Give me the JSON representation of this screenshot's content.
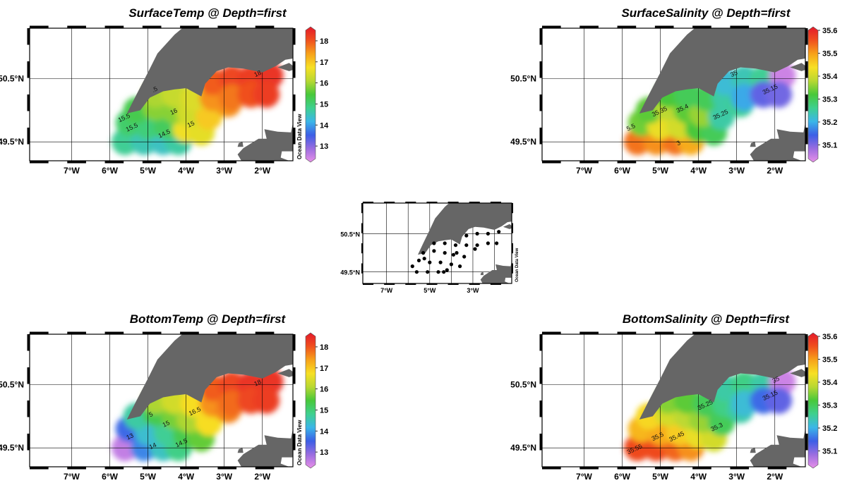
{
  "watermark": "Ocean Data View",
  "colors": {
    "land": "#666666",
    "grid": "#000000",
    "frame": "#000000",
    "colormap": [
      "#e890e8",
      "#9b6de0",
      "#3c5ee6",
      "#3bb6e8",
      "#3fd08f",
      "#48c83a",
      "#b8d832",
      "#f7e024",
      "#f7a21a",
      "#f0501e",
      "#e4192b"
    ]
  },
  "axes": {
    "x_ticks": [
      "7°W",
      "6°W",
      "5°W",
      "4°W",
      "3°W",
      "2°W"
    ],
    "x_values": [
      -7,
      -6,
      -5,
      -4,
      -3,
      -2
    ],
    "y_ticks": [
      "50.5°N",
      "49.5°N"
    ],
    "y_values": [
      50.5,
      49.5
    ],
    "lon_range": [
      -8.1,
      -1.2
    ],
    "lat_range": [
      49.2,
      51.3
    ],
    "inset_x_ticks": [
      "7°W",
      "5°W",
      "3°W"
    ],
    "inset_x_values": [
      -7,
      -5,
      -3
    ],
    "inset_y_ticks": [
      "50.5°N",
      "49.5°N"
    ],
    "inset_y_values": [
      50.5,
      49.5
    ]
  },
  "chart_data": [
    {
      "type": "heatmap",
      "title": "SurfaceTemp @ Depth=first",
      "variable": "SurfaceTemp",
      "colorbar": {
        "min": 12.4,
        "max": 18.5,
        "ticks": [
          "18",
          "17",
          "16",
          "15",
          "14",
          "13"
        ],
        "tick_values": [
          18,
          17,
          16,
          15,
          14,
          13
        ]
      },
      "contour_labels": [
        {
          "text": "18",
          "lon": -2.1,
          "lat": 50.55
        },
        {
          "text": "16",
          "lon": -4.3,
          "lat": 49.95
        },
        {
          "text": "15.5",
          "lon": -5.6,
          "lat": 49.85
        },
        {
          "text": "15.5",
          "lon": -5.4,
          "lat": 49.7
        },
        {
          "text": "14.5",
          "lon": -4.55,
          "lat": 49.6
        },
        {
          "text": ".5",
          "lon": -4.8,
          "lat": 50.3
        },
        {
          "text": "15",
          "lon": -3.85,
          "lat": 49.75
        }
      ],
      "stations": [
        {
          "lon": -5.6,
          "lat": 49.5,
          "value": 14.8
        },
        {
          "lon": -5.1,
          "lat": 49.5,
          "value": 14.6
        },
        {
          "lon": -4.6,
          "lat": 49.5,
          "value": 14.5
        },
        {
          "lon": -4.2,
          "lat": 49.5,
          "value": 14.7
        },
        {
          "lon": -5.5,
          "lat": 49.8,
          "value": 15.1
        },
        {
          "lon": -5.0,
          "lat": 49.75,
          "value": 15.0
        },
        {
          "lon": -4.5,
          "lat": 49.75,
          "value": 15.2
        },
        {
          "lon": -4.0,
          "lat": 49.7,
          "value": 16.6
        },
        {
          "lon": -3.6,
          "lat": 49.65,
          "value": 16.5
        },
        {
          "lon": -5.3,
          "lat": 50.0,
          "value": 15.3
        },
        {
          "lon": -4.8,
          "lat": 50.05,
          "value": 15.8
        },
        {
          "lon": -4.3,
          "lat": 50.0,
          "value": 15.8
        },
        {
          "lon": -3.9,
          "lat": 49.95,
          "value": 16.3
        },
        {
          "lon": -3.4,
          "lat": 49.9,
          "value": 16.9
        },
        {
          "lon": -4.8,
          "lat": 50.25,
          "value": 16.0
        },
        {
          "lon": -4.3,
          "lat": 50.25,
          "value": 16.2
        },
        {
          "lon": -3.8,
          "lat": 50.2,
          "value": 16.4
        },
        {
          "lon": -3.3,
          "lat": 50.2,
          "value": 17.4
        },
        {
          "lon": -2.9,
          "lat": 50.1,
          "value": 17.4
        },
        {
          "lon": -3.3,
          "lat": 50.45,
          "value": 17.8
        },
        {
          "lon": -2.8,
          "lat": 50.5,
          "value": 18.0
        },
        {
          "lon": -2.3,
          "lat": 50.5,
          "value": 18.1
        },
        {
          "lon": -1.8,
          "lat": 50.55,
          "value": 18.2
        },
        {
          "lon": -2.8,
          "lat": 50.2,
          "value": 17.6
        },
        {
          "lon": -2.3,
          "lat": 50.25,
          "value": 17.9
        },
        {
          "lon": -1.9,
          "lat": 50.25,
          "value": 18.1
        }
      ]
    },
    {
      "type": "heatmap",
      "title": "SurfaceSalinity @ Depth=first",
      "variable": "SurfaceSalinity",
      "colorbar": {
        "min": 35.04,
        "max": 35.6,
        "ticks": [
          "35.6",
          "35.5",
          "35.4",
          "35.3",
          "35.2",
          "35.1"
        ],
        "tick_values": [
          35.6,
          35.5,
          35.4,
          35.3,
          35.2,
          35.1
        ]
      },
      "contour_labels": [
        {
          "text": "35.35",
          "lon": -5.0,
          "lat": 49.95
        },
        {
          "text": "35.4",
          "lon": -4.4,
          "lat": 50.0
        },
        {
          "text": "35.25",
          "lon": -3.4,
          "lat": 49.9
        },
        {
          "text": "35.15",
          "lon": -2.1,
          "lat": 50.3
        },
        {
          "text": "5.5",
          "lon": -5.75,
          "lat": 49.7
        },
        {
          "text": "3",
          "lon": -4.5,
          "lat": 49.45
        },
        {
          "text": "35",
          "lon": -3.05,
          "lat": 50.55
        }
      ],
      "stations": [
        {
          "lon": -5.6,
          "lat": 49.5,
          "value": 35.52
        },
        {
          "lon": -5.1,
          "lat": 49.5,
          "value": 35.5
        },
        {
          "lon": -4.6,
          "lat": 49.5,
          "value": 35.52
        },
        {
          "lon": -4.2,
          "lat": 49.5,
          "value": 35.48
        },
        {
          "lon": -5.5,
          "lat": 49.8,
          "value": 35.34
        },
        {
          "lon": -5.0,
          "lat": 49.75,
          "value": 35.42
        },
        {
          "lon": -4.5,
          "lat": 49.75,
          "value": 35.4
        },
        {
          "lon": -4.0,
          "lat": 49.7,
          "value": 35.32
        },
        {
          "lon": -3.6,
          "lat": 49.65,
          "value": 35.3
        },
        {
          "lon": -5.3,
          "lat": 50.0,
          "value": 35.33
        },
        {
          "lon": -4.8,
          "lat": 50.05,
          "value": 35.38
        },
        {
          "lon": -4.3,
          "lat": 50.0,
          "value": 35.33
        },
        {
          "lon": -3.9,
          "lat": 49.95,
          "value": 35.36
        },
        {
          "lon": -3.4,
          "lat": 49.9,
          "value": 35.25
        },
        {
          "lon": -4.8,
          "lat": 50.25,
          "value": 35.32
        },
        {
          "lon": -4.3,
          "lat": 50.25,
          "value": 35.3
        },
        {
          "lon": -3.8,
          "lat": 50.2,
          "value": 35.3
        },
        {
          "lon": -3.3,
          "lat": 50.2,
          "value": 35.25
        },
        {
          "lon": -2.9,
          "lat": 50.1,
          "value": 35.26
        },
        {
          "lon": -3.3,
          "lat": 50.45,
          "value": 35.22
        },
        {
          "lon": -2.8,
          "lat": 50.5,
          "value": 35.24
        },
        {
          "lon": -2.3,
          "lat": 50.5,
          "value": 35.26
        },
        {
          "lon": -1.8,
          "lat": 50.55,
          "value": 35.06
        },
        {
          "lon": -2.8,
          "lat": 50.2,
          "value": 35.2
        },
        {
          "lon": -2.3,
          "lat": 50.25,
          "value": 35.13
        },
        {
          "lon": -1.9,
          "lat": 50.25,
          "value": 35.12
        }
      ]
    },
    {
      "type": "heatmap",
      "title": "BottomTemp @ Depth=first",
      "variable": "BottomTemp",
      "colorbar": {
        "min": 12.4,
        "max": 18.5,
        "ticks": [
          "18",
          "17",
          "16",
          "15",
          "14",
          "13"
        ],
        "tick_values": [
          18,
          17,
          16,
          15,
          14,
          13
        ]
      },
      "contour_labels": [
        {
          "text": "18",
          "lon": -2.1,
          "lat": 50.5
        },
        {
          "text": "16.5",
          "lon": -3.75,
          "lat": 50.05
        },
        {
          "text": "15",
          "lon": -4.5,
          "lat": 49.85
        },
        {
          "text": "14.5",
          "lon": -4.1,
          "lat": 49.55
        },
        {
          "text": "14",
          "lon": -4.85,
          "lat": 49.5
        },
        {
          "text": "13",
          "lon": -5.45,
          "lat": 49.65
        },
        {
          "text": "5",
          "lon": -4.9,
          "lat": 50.0
        }
      ],
      "stations": [
        {
          "lon": -5.6,
          "lat": 49.5,
          "value": 12.7
        },
        {
          "lon": -5.1,
          "lat": 49.5,
          "value": 13.9
        },
        {
          "lon": -4.6,
          "lat": 49.5,
          "value": 14.5
        },
        {
          "lon": -4.2,
          "lat": 49.5,
          "value": 14.9
        },
        {
          "lon": -5.5,
          "lat": 49.8,
          "value": 13.7
        },
        {
          "lon": -5.0,
          "lat": 49.75,
          "value": 14.4
        },
        {
          "lon": -4.5,
          "lat": 49.75,
          "value": 14.8
        },
        {
          "lon": -4.0,
          "lat": 49.7,
          "value": 15.3
        },
        {
          "lon": -3.6,
          "lat": 49.65,
          "value": 15.6
        },
        {
          "lon": -5.3,
          "lat": 50.0,
          "value": 14.7
        },
        {
          "lon": -4.8,
          "lat": 50.05,
          "value": 15.3
        },
        {
          "lon": -4.3,
          "lat": 50.0,
          "value": 15.7
        },
        {
          "lon": -3.9,
          "lat": 49.95,
          "value": 16.0
        },
        {
          "lon": -3.4,
          "lat": 49.9,
          "value": 16.7
        },
        {
          "lon": -4.8,
          "lat": 50.25,
          "value": 16.0
        },
        {
          "lon": -4.3,
          "lat": 50.25,
          "value": 16.3
        },
        {
          "lon": -3.8,
          "lat": 50.2,
          "value": 16.7
        },
        {
          "lon": -3.3,
          "lat": 50.2,
          "value": 17.4
        },
        {
          "lon": -2.9,
          "lat": 50.1,
          "value": 17.5
        },
        {
          "lon": -3.3,
          "lat": 50.45,
          "value": 17.8
        },
        {
          "lon": -2.8,
          "lat": 50.5,
          "value": 18.0
        },
        {
          "lon": -2.3,
          "lat": 50.5,
          "value": 18.2
        },
        {
          "lon": -1.8,
          "lat": 50.55,
          "value": 18.2
        },
        {
          "lon": -2.8,
          "lat": 50.2,
          "value": 17.7
        },
        {
          "lon": -2.3,
          "lat": 50.25,
          "value": 18.0
        },
        {
          "lon": -1.9,
          "lat": 50.25,
          "value": 18.1
        }
      ]
    },
    {
      "type": "heatmap",
      "title": "BottomSalinity @ Depth=first",
      "variable": "BottomSalinity",
      "colorbar": {
        "min": 35.04,
        "max": 35.6,
        "ticks": [
          "35.6",
          "35.5",
          "35.4",
          "35.3",
          "35.2",
          "35.1"
        ],
        "tick_values": [
          35.6,
          35.5,
          35.4,
          35.3,
          35.2,
          35.1
        ]
      },
      "contour_labels": [
        {
          "text": "35.55",
          "lon": -5.65,
          "lat": 49.45
        },
        {
          "text": "35.5",
          "lon": -5.05,
          "lat": 49.65
        },
        {
          "text": "35.45",
          "lon": -4.55,
          "lat": 49.65
        },
        {
          "text": "35.25",
          "lon": -3.8,
          "lat": 50.15
        },
        {
          "text": "35.3",
          "lon": -3.5,
          "lat": 49.8
        },
        {
          "text": "35.15",
          "lon": -2.1,
          "lat": 50.3
        },
        {
          "text": "35",
          "lon": -1.95,
          "lat": 50.55
        }
      ],
      "stations": [
        {
          "lon": -5.6,
          "lat": 49.5,
          "value": 35.55
        },
        {
          "lon": -5.1,
          "lat": 49.5,
          "value": 35.55
        },
        {
          "lon": -4.6,
          "lat": 49.5,
          "value": 35.53
        },
        {
          "lon": -4.2,
          "lat": 49.5,
          "value": 35.5
        },
        {
          "lon": -5.5,
          "lat": 49.8,
          "value": 35.47
        },
        {
          "lon": -5.0,
          "lat": 49.75,
          "value": 35.48
        },
        {
          "lon": -4.5,
          "lat": 49.75,
          "value": 35.45
        },
        {
          "lon": -4.0,
          "lat": 49.7,
          "value": 35.42
        },
        {
          "lon": -3.6,
          "lat": 49.65,
          "value": 35.4
        },
        {
          "lon": -5.3,
          "lat": 50.0,
          "value": 35.44
        },
        {
          "lon": -4.8,
          "lat": 50.05,
          "value": 35.4
        },
        {
          "lon": -4.3,
          "lat": 50.0,
          "value": 35.38
        },
        {
          "lon": -3.9,
          "lat": 49.95,
          "value": 35.36
        },
        {
          "lon": -3.4,
          "lat": 49.9,
          "value": 35.3
        },
        {
          "lon": -4.8,
          "lat": 50.25,
          "value": 35.35
        },
        {
          "lon": -4.3,
          "lat": 50.25,
          "value": 35.33
        },
        {
          "lon": -3.8,
          "lat": 50.2,
          "value": 35.3
        },
        {
          "lon": -3.3,
          "lat": 50.2,
          "value": 35.27
        },
        {
          "lon": -2.9,
          "lat": 50.1,
          "value": 35.25
        },
        {
          "lon": -3.3,
          "lat": 50.45,
          "value": 35.25
        },
        {
          "lon": -2.8,
          "lat": 50.5,
          "value": 35.27
        },
        {
          "lon": -2.3,
          "lat": 50.5,
          "value": 35.25
        },
        {
          "lon": -1.8,
          "lat": 50.55,
          "value": 35.06
        },
        {
          "lon": -2.8,
          "lat": 50.2,
          "value": 35.22
        },
        {
          "lon": -2.3,
          "lat": 50.25,
          "value": 35.16
        },
        {
          "lon": -1.9,
          "lat": 50.25,
          "value": 35.13
        }
      ]
    },
    {
      "type": "scatter",
      "title": "",
      "variable": "stations",
      "points": [
        {
          "lon": -5.6,
          "lat": 49.5
        },
        {
          "lon": -5.1,
          "lat": 49.5
        },
        {
          "lon": -4.6,
          "lat": 49.5
        },
        {
          "lon": -4.2,
          "lat": 49.55
        },
        {
          "lon": -5.5,
          "lat": 49.8
        },
        {
          "lon": -5.0,
          "lat": 49.75
        },
        {
          "lon": -4.5,
          "lat": 49.75
        },
        {
          "lon": -4.0,
          "lat": 49.7
        },
        {
          "lon": -3.6,
          "lat": 49.65
        },
        {
          "lon": -5.3,
          "lat": 50.0
        },
        {
          "lon": -4.8,
          "lat": 50.05
        },
        {
          "lon": -4.3,
          "lat": 50.0
        },
        {
          "lon": -3.9,
          "lat": 49.95
        },
        {
          "lon": -3.4,
          "lat": 49.9
        },
        {
          "lon": -4.8,
          "lat": 50.25
        },
        {
          "lon": -4.3,
          "lat": 50.25
        },
        {
          "lon": -3.8,
          "lat": 50.2
        },
        {
          "lon": -3.3,
          "lat": 50.2
        },
        {
          "lon": -2.9,
          "lat": 50.1
        },
        {
          "lon": -3.3,
          "lat": 50.45
        },
        {
          "lon": -2.8,
          "lat": 50.5
        },
        {
          "lon": -2.3,
          "lat": 50.5
        },
        {
          "lon": -1.8,
          "lat": 50.55
        },
        {
          "lon": -2.8,
          "lat": 50.2
        },
        {
          "lon": -2.3,
          "lat": 50.25
        },
        {
          "lon": -1.9,
          "lat": 50.25
        },
        {
          "lon": -5.8,
          "lat": 49.65
        },
        {
          "lon": -5.25,
          "lat": 49.85
        },
        {
          "lon": -4.35,
          "lat": 49.5
        },
        {
          "lon": -3.75,
          "lat": 50.0
        }
      ]
    }
  ]
}
